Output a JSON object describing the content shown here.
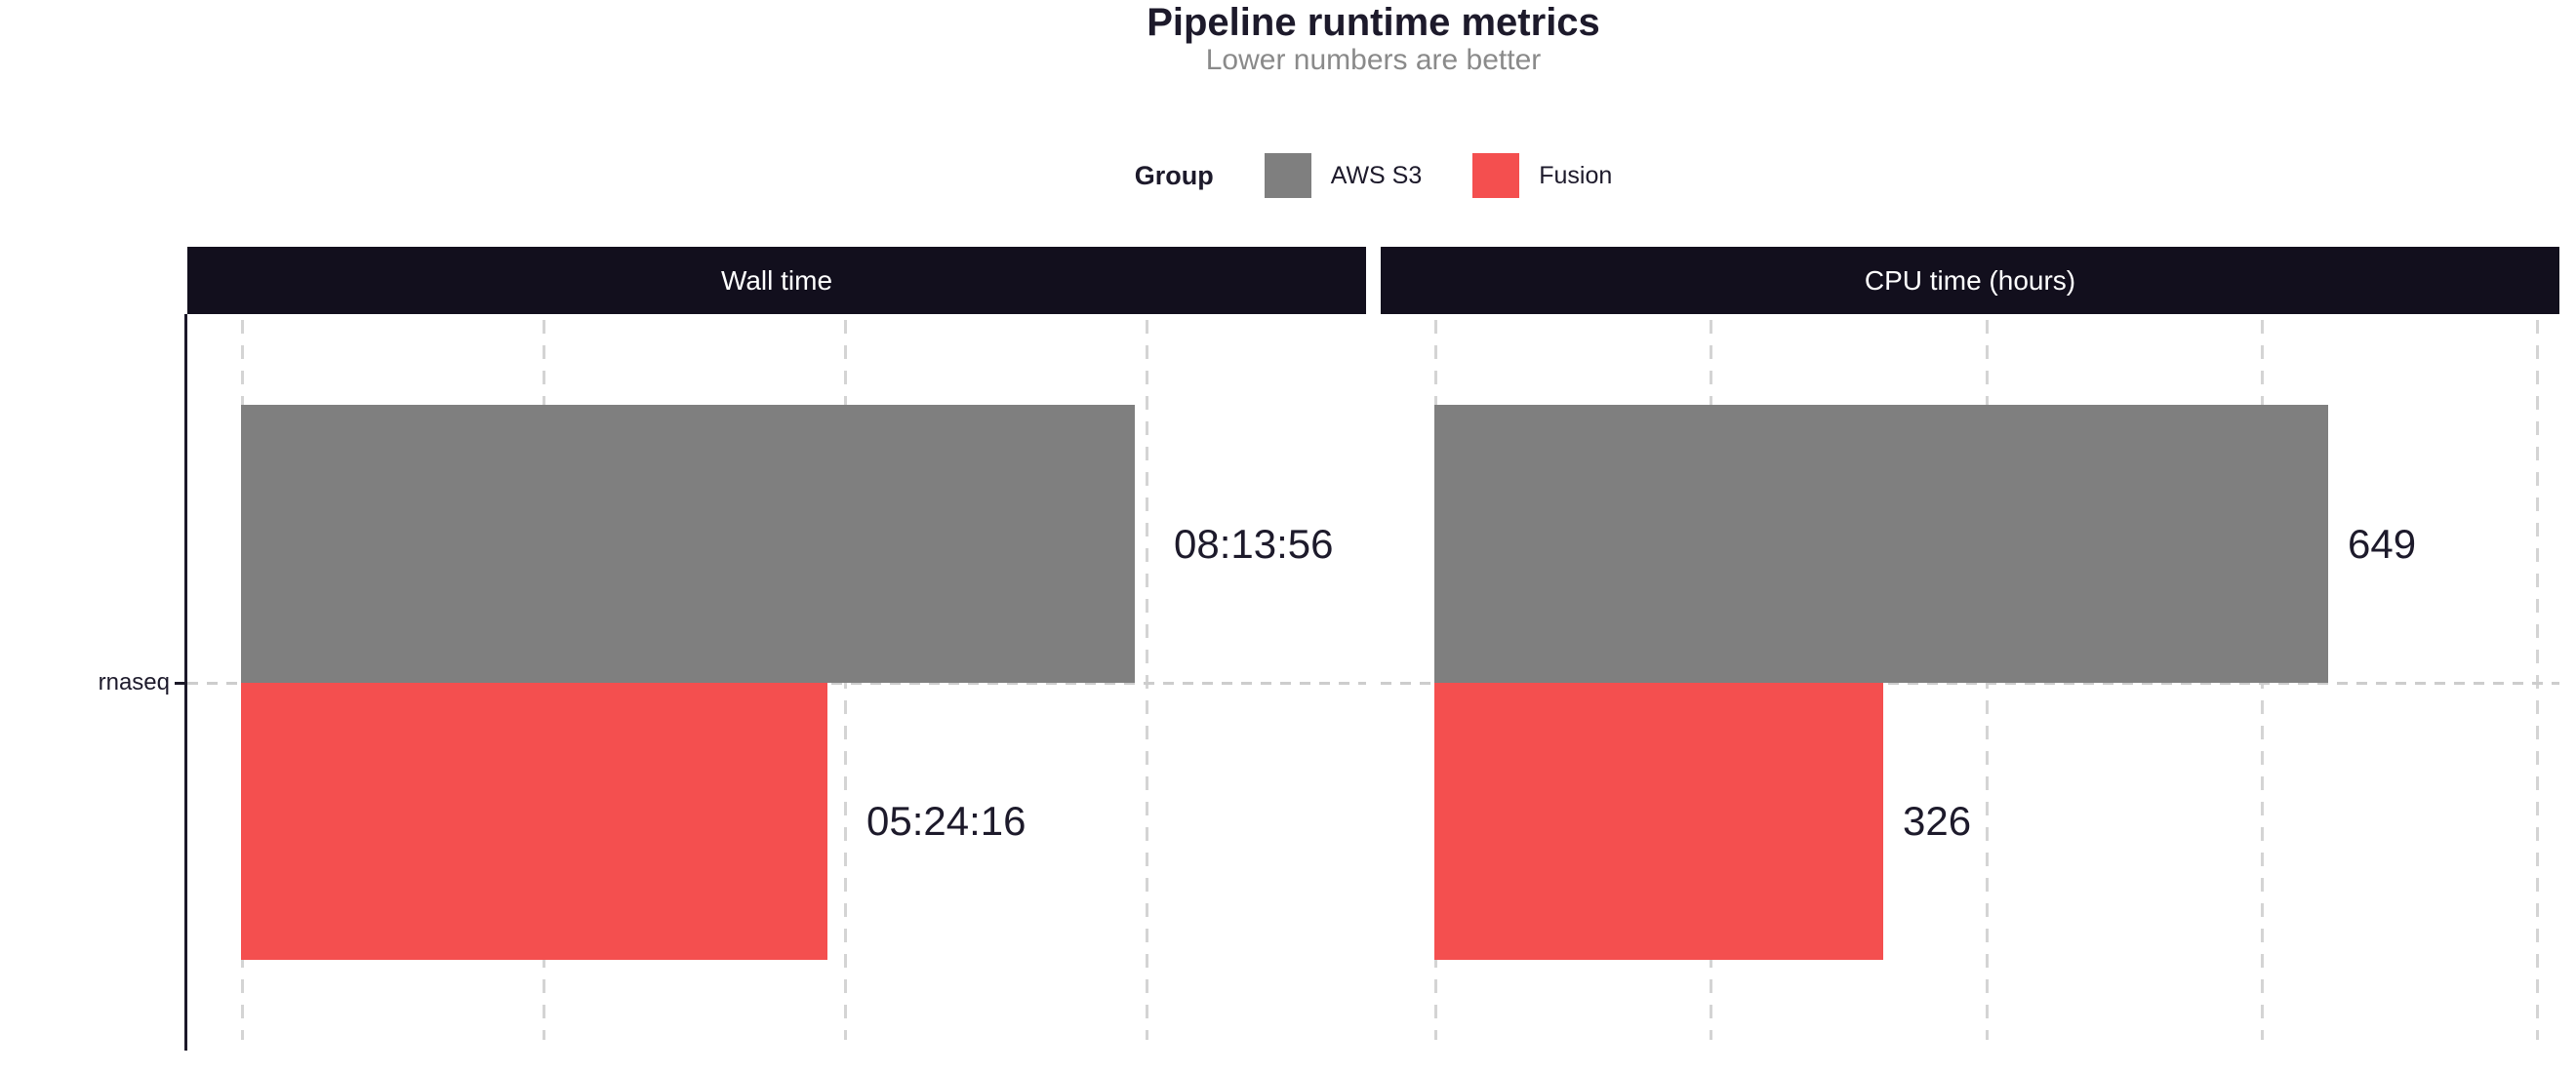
{
  "title": "Pipeline runtime metrics",
  "subtitle": "Lower numbers are better",
  "legend": {
    "title": "Group",
    "items": [
      {
        "label": "AWS S3",
        "color": "#7f7f7f"
      },
      {
        "label": "Fusion",
        "color": "#f44f4f"
      }
    ]
  },
  "colors": {
    "strip_background": "#120f1d",
    "strip_text": "#ffffff",
    "title_text": "#1d1a2b",
    "subtitle_text": "#8a8a8a",
    "gridline": "#d4d4d4",
    "aws_s3_bar": "#7f7f7f",
    "fusion_bar": "#f44f4f"
  },
  "chart_data": {
    "type": "bar",
    "orientation": "horizontal",
    "title": "Pipeline runtime metrics",
    "subtitle": "Lower numbers are better",
    "legend_title": "Group",
    "legend_position": "top",
    "legend_entries": [
      "AWS S3",
      "Fusion"
    ],
    "grid": "dashed",
    "categories": [
      "rnaseq"
    ],
    "colors": {
      "AWS S3": "#7f7f7f",
      "Fusion": "#f44f4f"
    },
    "panels": [
      {
        "title": "Wall time",
        "unit": "seconds (labelled hh:mm:ss)",
        "axis_max": 39000,
        "gridline_values": [
          0,
          10000,
          20000,
          30000
        ],
        "series": [
          {
            "name": "AWS S3",
            "value": 29636,
            "value_label": "08:13:56"
          },
          {
            "name": "Fusion",
            "value": 19456,
            "value_label": "05:24:16"
          }
        ]
      },
      {
        "title": "CPU time (hours)",
        "unit": "hours",
        "axis_max": 860,
        "gridline_values": [
          0,
          200,
          400,
          600,
          800
        ],
        "series": [
          {
            "name": "AWS S3",
            "value": 649,
            "value_label": "649"
          },
          {
            "name": "Fusion",
            "value": 326,
            "value_label": "326"
          }
        ]
      }
    ]
  }
}
